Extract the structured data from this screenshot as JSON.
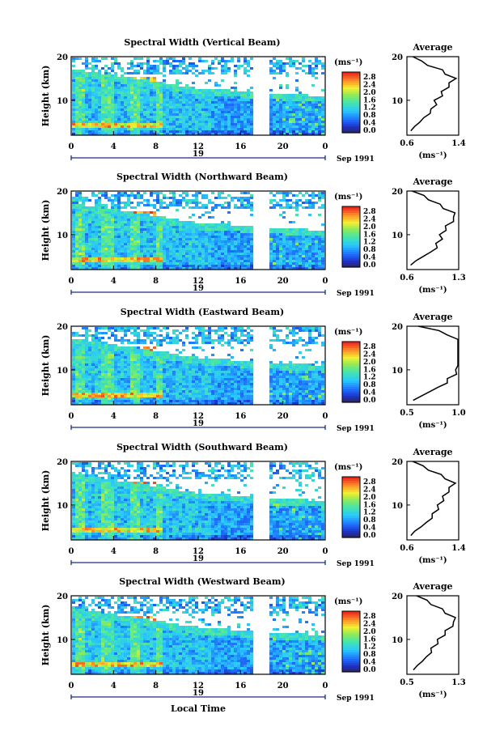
{
  "figure": {
    "xlabel": "Local Time",
    "month_label": "Sep 1991",
    "ylabel": "Height (km)",
    "cbar_unit": "(ms⁻¹)",
    "avg_title": "Average",
    "avg_xunit": "(ms⁻¹)",
    "day_label": "19"
  },
  "chart_data": [
    {
      "type": "heatmap",
      "title": "Spectral Width (Vertical Beam)",
      "xlabel": "Local Time",
      "ylabel": "Height (km)",
      "xlim": [
        0,
        24
      ],
      "ylim": [
        2,
        20
      ],
      "x_ticks": [
        "0",
        "4",
        "8",
        "12",
        "16",
        "20",
        "0"
      ],
      "y_ticks": [
        "20",
        "10"
      ],
      "data_gap_hours": [
        17.2,
        18.6
      ],
      "colorbar": {
        "unit": "(ms⁻¹)",
        "ticks": [
          "2.8",
          "2.4",
          "2.0",
          "1.6",
          "1.2",
          "0.8",
          "0.4",
          "0.0"
        ],
        "range": [
          0,
          3.0
        ]
      },
      "average_profile": {
        "title": "Average",
        "xlim": [
          0.6,
          1.4
        ],
        "x_ticks": [
          "0.6",
          "1.4"
        ],
        "y_ticks": [
          "20",
          "10"
        ],
        "heights": [
          3,
          4,
          5,
          6,
          7,
          8,
          9,
          10,
          11,
          12,
          13,
          14,
          15,
          16,
          17,
          18,
          19,
          20
        ],
        "values": [
          0.66,
          0.72,
          0.8,
          0.86,
          0.93,
          1.0,
          1.03,
          1.05,
          1.12,
          1.16,
          1.22,
          1.28,
          1.33,
          1.22,
          1.12,
          0.95,
          0.8,
          0.72
        ]
      }
    },
    {
      "type": "heatmap",
      "title": "Spectral Width (Northward Beam)",
      "xlabel": "Local Time",
      "ylabel": "Height (km)",
      "xlim": [
        0,
        24
      ],
      "ylim": [
        2,
        20
      ],
      "x_ticks": [
        "0",
        "4",
        "8",
        "12",
        "16",
        "20",
        "0"
      ],
      "y_ticks": [
        "20",
        "10"
      ],
      "data_gap_hours": [
        17.2,
        18.6
      ],
      "colorbar": {
        "unit": "(ms⁻¹)",
        "ticks": [
          "2.8",
          "2.4",
          "2.0",
          "1.6",
          "1.2",
          "0.8",
          "0.4",
          "0.0"
        ],
        "range": [
          0,
          3.0
        ]
      },
      "average_profile": {
        "title": "Average",
        "xlim": [
          0.6,
          1.3
        ],
        "x_ticks": [
          "0.6",
          "1.3"
        ],
        "y_ticks": [
          "20",
          "10"
        ],
        "heights": [
          3,
          4,
          5,
          6,
          7,
          8,
          9,
          10,
          11,
          12,
          13,
          14,
          15,
          16,
          17,
          18,
          19,
          20
        ],
        "values": [
          0.65,
          0.72,
          0.82,
          0.92,
          0.98,
          1.02,
          1.05,
          1.07,
          1.1,
          1.15,
          1.2,
          1.26,
          1.22,
          1.12,
          1.02,
          0.92,
          0.8,
          0.7
        ]
      }
    },
    {
      "type": "heatmap",
      "title": "Spectral Width (Eastward Beam)",
      "xlabel": "Local Time",
      "ylabel": "Height (km)",
      "xlim": [
        0,
        24
      ],
      "ylim": [
        2,
        20
      ],
      "x_ticks": [
        "0",
        "4",
        "8",
        "12",
        "16",
        "20",
        "0"
      ],
      "y_ticks": [
        "20",
        "10"
      ],
      "data_gap_hours": [
        17.2,
        18.6
      ],
      "colorbar": {
        "unit": "(ms⁻¹)",
        "ticks": [
          "2.8",
          "2.4",
          "2.0",
          "1.6",
          "1.2",
          "0.8",
          "0.4",
          "0.0"
        ],
        "range": [
          0,
          3.0
        ]
      },
      "average_profile": {
        "title": "Average",
        "xlim": [
          0.5,
          1.0
        ],
        "x_ticks": [
          "0.5",
          "1.0"
        ],
        "y_ticks": [
          "20",
          "10"
        ],
        "heights": [
          3,
          4,
          5,
          6,
          7,
          8,
          9,
          10,
          11,
          12,
          13,
          14,
          15,
          16,
          17,
          18,
          19,
          20
        ],
        "values": [
          0.56,
          0.64,
          0.72,
          0.8,
          0.86,
          0.92,
          0.95,
          1.0,
          1.05,
          1.1,
          1.15,
          1.22,
          1.2,
          1.14,
          1.04,
          0.92,
          0.78,
          0.64
        ]
      }
    },
    {
      "type": "heatmap",
      "title": "Spectral Width (Southward Beam)",
      "xlabel": "Local Time",
      "ylabel": "Height (km)",
      "xlim": [
        0,
        24
      ],
      "ylim": [
        2,
        20
      ],
      "x_ticks": [
        "0",
        "4",
        "8",
        "12",
        "16",
        "20",
        "0"
      ],
      "y_ticks": [
        "20",
        "10"
      ],
      "data_gap_hours": [
        17.2,
        18.6
      ],
      "colorbar": {
        "unit": "(ms⁻¹)",
        "ticks": [
          "2.8",
          "2.4",
          "2.0",
          "1.6",
          "1.2",
          "0.8",
          "0.4",
          "0.0"
        ],
        "range": [
          0,
          3.0
        ]
      },
      "average_profile": {
        "title": "Average",
        "xlim": [
          0.6,
          1.4
        ],
        "x_ticks": [
          "0.6",
          "1.4"
        ],
        "y_ticks": [
          "20",
          "10"
        ],
        "heights": [
          3,
          4,
          5,
          6,
          7,
          8,
          9,
          10,
          11,
          12,
          13,
          14,
          15,
          16,
          17,
          18,
          19,
          20
        ],
        "values": [
          0.66,
          0.72,
          0.82,
          0.9,
          0.96,
          1.02,
          1.06,
          1.1,
          1.14,
          1.18,
          1.22,
          1.28,
          1.32,
          1.22,
          1.1,
          0.96,
          0.82,
          0.72
        ]
      }
    },
    {
      "type": "heatmap",
      "title": "Spectral Width (Westward Beam)",
      "xlabel": "Local Time",
      "ylabel": "Height (km)",
      "xlim": [
        0,
        24
      ],
      "ylim": [
        2,
        20
      ],
      "x_ticks": [
        "0",
        "4",
        "8",
        "12",
        "16",
        "20",
        "0"
      ],
      "y_ticks": [
        "20",
        "10"
      ],
      "data_gap_hours": [
        17.2,
        18.6
      ],
      "colorbar": {
        "unit": "(ms⁻¹)",
        "ticks": [
          "2.8",
          "2.4",
          "2.0",
          "1.6",
          "1.2",
          "0.8",
          "0.4",
          "0.0"
        ],
        "range": [
          0,
          3.0
        ]
      },
      "average_profile": {
        "title": "Average",
        "xlim": [
          0.5,
          1.3
        ],
        "x_ticks": [
          "0.5",
          "1.3"
        ],
        "y_ticks": [
          "20",
          "10"
        ],
        "heights": [
          3,
          4,
          5,
          6,
          7,
          8,
          9,
          10,
          11,
          12,
          13,
          14,
          15,
          16,
          17,
          18,
          19,
          20
        ],
        "values": [
          0.6,
          0.66,
          0.74,
          0.8,
          0.85,
          0.9,
          0.95,
          1.0,
          1.06,
          1.12,
          1.18,
          1.25,
          1.22,
          1.12,
          1.02,
          0.9,
          0.78,
          0.68
        ]
      }
    }
  ]
}
